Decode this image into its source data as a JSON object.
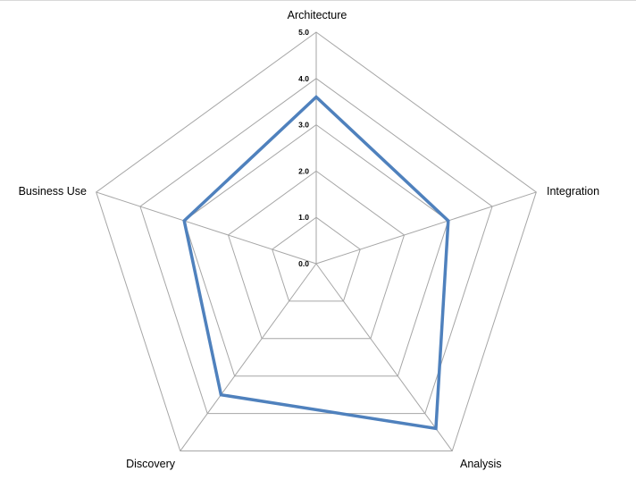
{
  "chart_data": {
    "type": "radar",
    "categories": [
      "Architecture",
      "Integration",
      "Analysis",
      "Discovery",
      "Business Use"
    ],
    "series": [
      {
        "values": [
          3.6,
          3.0,
          4.4,
          3.5,
          3.0
        ]
      }
    ],
    "ticks": [
      "0.0",
      "1.0",
      "2.0",
      "3.0",
      "4.0",
      "5.0"
    ],
    "rlim": [
      0,
      5
    ],
    "grid": true,
    "legend": "none",
    "colors": {
      "series": "#4f81bd",
      "grid": "#a6a6a6"
    }
  }
}
